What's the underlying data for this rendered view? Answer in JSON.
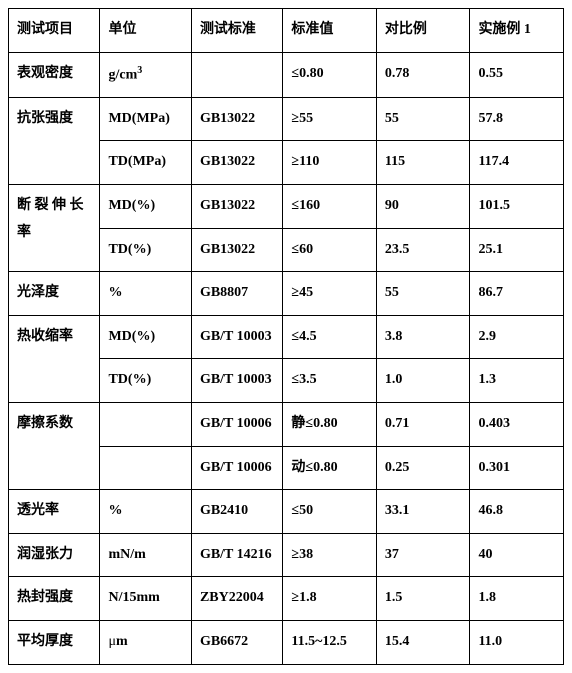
{
  "header": [
    "测试项目",
    "单位",
    "测试标准",
    "标准值",
    "对比例",
    "实施例 1"
  ],
  "rows": [
    {
      "name": "apparent-density",
      "item": "表观密度",
      "units": [
        "g/cm3_sup"
      ],
      "std": [
        ""
      ],
      "val": [
        "≤0.80"
      ],
      "cmp": [
        "0.78"
      ],
      "ex": [
        "0.55"
      ]
    },
    {
      "name": "tensile-strength",
      "item": "抗张强度",
      "units": [
        "MD(MPa)",
        "TD(MPa)"
      ],
      "std": [
        "  GB13022",
        "GB13022"
      ],
      "val": [
        "≥55",
        "≥110"
      ],
      "cmp": [
        "55",
        "115"
      ],
      "ex": [
        "57.8",
        "117.4"
      ]
    },
    {
      "name": "elongation-break",
      "item": "断 裂 伸 长率",
      "units": [
        "MD(%)",
        "TD(%)"
      ],
      "std": [
        "GB13022",
        "GB13022"
      ],
      "val": [
        "≤160",
        "≤60"
      ],
      "cmp": [
        "90",
        "23.5"
      ],
      "ex": [
        "101.5",
        "25.1"
      ]
    },
    {
      "name": "gloss",
      "item": "光泽度",
      "units": [
        "%"
      ],
      "std": [
        "GB8807"
      ],
      "val": [
        "≥45"
      ],
      "cmp": [
        "55"
      ],
      "ex": [
        "86.7"
      ]
    },
    {
      "name": "heat-shrink",
      "item": "热收缩率",
      "units": [
        "MD(%)",
        "TD(%)"
      ],
      "std": [
        "GB/T 10003",
        "GB/T 10003"
      ],
      "val": [
        "≤4.5",
        "≤3.5"
      ],
      "cmp": [
        "3.8",
        "1.0"
      ],
      "ex": [
        "2.9",
        "1.3"
      ]
    },
    {
      "name": "friction",
      "item": "摩擦系数",
      "units": [
        "",
        ""
      ],
      "std": [
        "GB/T 10006",
        "GB/T 10006"
      ],
      "val": [
        "静≤0.80",
        "动≤0.80"
      ],
      "cmp": [
        "0.71",
        "0.25"
      ],
      "ex": [
        "0.403",
        "0.301"
      ]
    },
    {
      "name": "transmittance",
      "item": "透光率",
      "units": [
        "%"
      ],
      "std": [
        "GB2410"
      ],
      "val": [
        "≤50"
      ],
      "cmp": [
        "33.1"
      ],
      "ex": [
        "46.8"
      ]
    },
    {
      "name": "wetting-tension",
      "item": "润湿张力",
      "units": [
        "mN/m"
      ],
      "std": [
        "GB/T 14216"
      ],
      "val": [
        "≥38"
      ],
      "cmp": [
        "37"
      ],
      "ex": [
        "40"
      ]
    },
    {
      "name": "heat-seal",
      "item": "热封强度",
      "units": [
        "N/15mm"
      ],
      "std": [
        "ZBY22004"
      ],
      "val": [
        "≥1.8"
      ],
      "cmp": [
        "1.5"
      ],
      "ex": [
        "1.8"
      ]
    },
    {
      "name": "avg-thickness",
      "item": "平均厚度",
      "units": [
        "μm_mu"
      ],
      "std": [
        "GB6672"
      ],
      "val": [
        "11.5~12.5"
      ],
      "cmp": [
        "15.4"
      ],
      "ex": [
        "11.0"
      ]
    }
  ]
}
